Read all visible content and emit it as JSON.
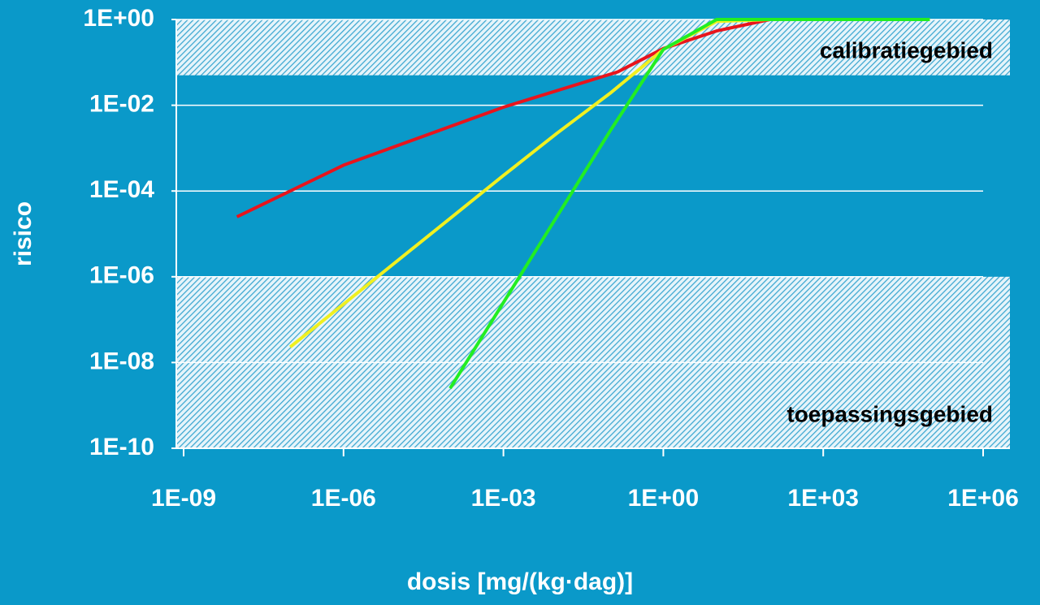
{
  "chart_data": {
    "type": "line",
    "log_x": true,
    "log_y": true,
    "grid": true,
    "x_label": "dosis [mg/(kg·dag)]",
    "y_label": "risico",
    "xlim": [
      1e-09,
      1000000.0
    ],
    "ylim": [
      1e-10,
      1
    ],
    "xticks": [
      {
        "value": 1e-09,
        "label": "1E-09"
      },
      {
        "value": 1e-06,
        "label": "1E-06"
      },
      {
        "value": 0.001,
        "label": "1E-03"
      },
      {
        "value": 1,
        "label": "1E+00"
      },
      {
        "value": 1000.0,
        "label": "1E+03"
      },
      {
        "value": 1000000.0,
        "label": "1E+06"
      }
    ],
    "yticks": [
      {
        "value": 1,
        "label": "1E+00"
      },
      {
        "value": 0.01,
        "label": "1E-02"
      },
      {
        "value": 0.0001,
        "label": "1E-04"
      },
      {
        "value": 1e-06,
        "label": "1E-06"
      },
      {
        "value": 1e-08,
        "label": "1E-08"
      },
      {
        "value": 1e-10,
        "label": "1E-10"
      }
    ],
    "bands": [
      {
        "label": "calibratiegebied",
        "y": [
          0.05,
          1
        ]
      },
      {
        "label": "toepassingsgebied",
        "y": [
          1e-10,
          1e-06
        ]
      }
    ],
    "series": [
      {
        "color": "#e8141c",
        "x": [
          1e-08,
          1e-06,
          0.001,
          0.14,
          1,
          10,
          100,
          100000.0
        ],
        "values": [
          2.5e-05,
          0.0004,
          0.009,
          0.06,
          0.21,
          0.54,
          1,
          1
        ]
      },
      {
        "color": "#f0f020",
        "x": [
          1e-07,
          1e-06,
          1e-05,
          0.0001,
          0.001,
          0.01,
          0.1,
          1,
          10,
          100,
          100000.0
        ],
        "values": [
          2.3e-08,
          2.3e-07,
          2.3e-06,
          2.3e-05,
          0.00023,
          0.0022,
          0.019,
          0.2,
          0.9,
          1,
          1
        ]
      },
      {
        "color": "#22ee22",
        "x": [
          0.0001,
          0.001,
          0.01,
          0.1,
          1,
          10,
          100000.0
        ],
        "values": [
          2.5e-09,
          2.5e-07,
          2.5e-05,
          0.0025,
          0.2,
          1,
          1
        ]
      }
    ]
  }
}
